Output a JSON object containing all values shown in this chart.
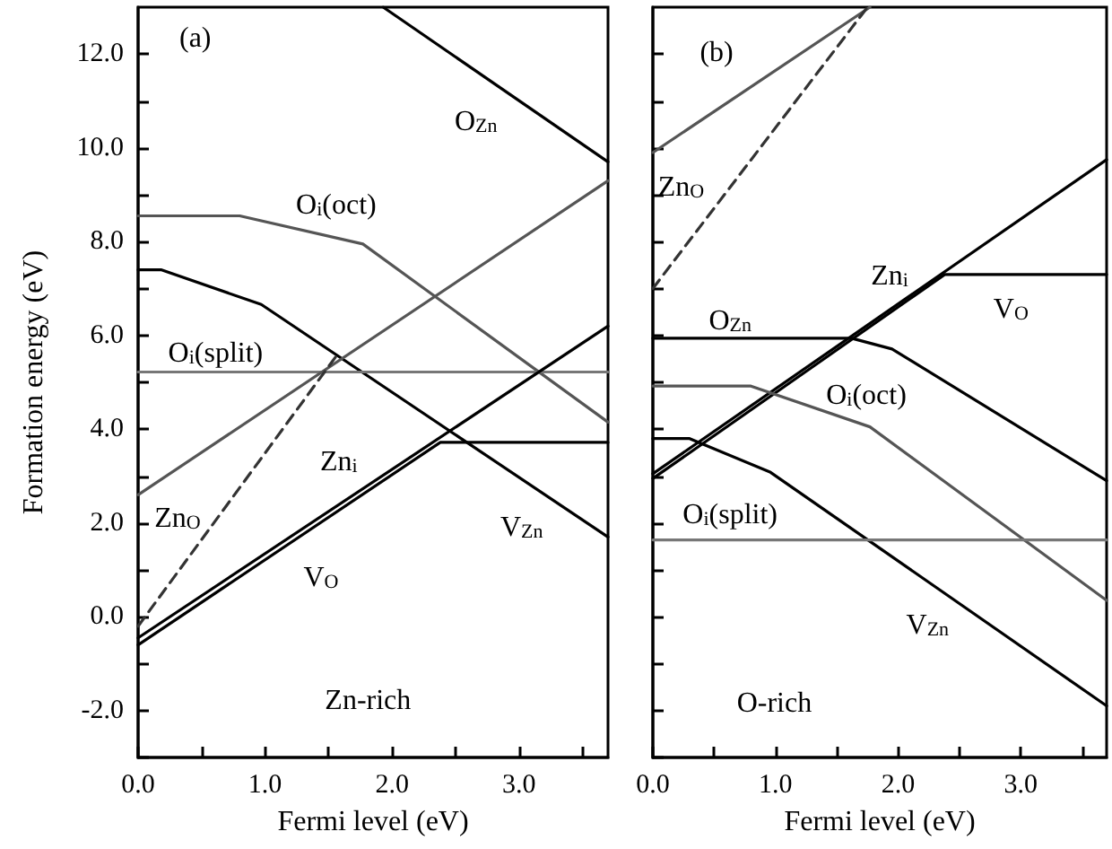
{
  "chart_data": [
    {
      "type": "line",
      "xlabel": "Fermi level (eV)",
      "ylabel": "Formation energy (eV)",
      "xlim": [
        0,
        3.7
      ],
      "ylim": [
        -3,
        13
      ],
      "xticks": [
        {
          "value": 0,
          "label": "0.0"
        },
        {
          "value": 0.5,
          "label": null
        },
        {
          "value": 1,
          "label": "1.0"
        },
        {
          "value": 1.5,
          "label": null
        },
        {
          "value": 2,
          "label": "2.0"
        },
        {
          "value": 2.5,
          "label": null
        },
        {
          "value": 3,
          "label": "3.0"
        },
        {
          "value": 3.5,
          "label": null
        }
      ],
      "yticks": [
        {
          "value": -3,
          "label": null
        },
        {
          "value": -2,
          "label": "-2.0"
        },
        {
          "value": -1,
          "label": null
        },
        {
          "value": 0,
          "label": "0.0"
        },
        {
          "value": 1,
          "label": null
        },
        {
          "value": 2,
          "label": "2.0"
        },
        {
          "value": 3,
          "label": null
        },
        {
          "value": 4,
          "label": "4.0"
        },
        {
          "value": 5,
          "label": null
        },
        {
          "value": 6,
          "label": "6.0"
        },
        {
          "value": 7,
          "label": null
        },
        {
          "value": 8,
          "label": "8.0"
        },
        {
          "value": 9,
          "label": null
        },
        {
          "value": 10,
          "label": "10.0"
        },
        {
          "value": 11,
          "label": null
        },
        {
          "value": 12,
          "label": "12.0"
        }
      ],
      "grid": false,
      "marker": "none",
      "series": [
        {
          "color": "#000000",
          "x": [
            1.93,
            3.7
          ],
          "values": [
            13.0,
            9.7
          ]
        },
        {
          "color": "#555555",
          "x": [
            0,
            0.8,
            1.77,
            3.7
          ],
          "values": [
            8.55,
            8.55,
            7.95,
            4.15
          ]
        },
        {
          "color": "#000000",
          "x": [
            0,
            0.18,
            0.97,
            3.7
          ],
          "values": [
            7.4,
            7.4,
            6.66,
            1.7
          ]
        },
        {
          "color": "#777777",
          "x": [
            0,
            3.7
          ],
          "values": [
            5.22,
            5.22
          ]
        },
        {
          "color": "#555555",
          "x": [
            0,
            3.7
          ],
          "values": [
            2.6,
            9.3
          ]
        },
        {
          "color": "#333333",
          "line_style": "dashed",
          "x": [
            0,
            1.56
          ],
          "values": [
            -0.2,
            5.56
          ]
        },
        {
          "color": "#000000",
          "x": [
            0,
            3.7
          ],
          "values": [
            -0.45,
            6.2
          ]
        },
        {
          "color": "#000000",
          "x": [
            0,
            2.38,
            3.7
          ],
          "values": [
            -0.6,
            3.72,
            3.72
          ]
        }
      ],
      "annotations": [
        "(a)",
        "O$_{Zn}$",
        "O$_{i}$(oct)",
        "O$_{i}$(split)",
        "Zn$_{i}$",
        "Zn$_{O}$",
        "V$_{O}$",
        "V$_{Zn}$",
        "Zn-rich"
      ]
    },
    {
      "type": "line",
      "xlabel": "Fermi level (eV)",
      "xlim": [
        0,
        3.7
      ],
      "ylim": [
        -3,
        13
      ],
      "tick_labels": "x",
      "xticks": [
        {
          "value": 0,
          "label": "0.0"
        },
        {
          "value": 0.5,
          "label": null
        },
        {
          "value": 1,
          "label": "1.0"
        },
        {
          "value": 1.5,
          "label": null
        },
        {
          "value": 2,
          "label": "2.0"
        },
        {
          "value": 2.5,
          "label": null
        },
        {
          "value": 3,
          "label": "3.0"
        },
        {
          "value": 3.5,
          "label": null
        }
      ],
      "yticks": [
        {
          "value": -3,
          "label": null
        },
        {
          "value": -2,
          "label": null
        },
        {
          "value": -1,
          "label": null
        },
        {
          "value": 0,
          "label": null
        },
        {
          "value": 1,
          "label": null
        },
        {
          "value": 2,
          "label": null
        },
        {
          "value": 3,
          "label": null
        },
        {
          "value": 4,
          "label": null
        },
        {
          "value": 5,
          "label": null
        },
        {
          "value": 6,
          "label": null
        },
        {
          "value": 7,
          "label": null
        },
        {
          "value": 8,
          "label": null
        },
        {
          "value": 9,
          "label": null
        },
        {
          "value": 10,
          "label": null
        },
        {
          "value": 11,
          "label": null
        },
        {
          "value": 12,
          "label": null
        }
      ],
      "grid": false,
      "marker": "none",
      "series": [
        {
          "color": "#555555",
          "x": [
            0,
            1.77
          ],
          "values": [
            9.9,
            13.0
          ]
        },
        {
          "color": "#333333",
          "line_style": "dashed",
          "x": [
            0,
            1.75
          ],
          "values": [
            7.0,
            13.0
          ]
        },
        {
          "color": "#000000",
          "x": [
            0,
            3.7
          ],
          "values": [
            3.05,
            9.75
          ]
        },
        {
          "color": "#000000",
          "x": [
            0,
            2.38,
            3.7
          ],
          "values": [
            2.95,
            7.3,
            7.3
          ]
        },
        {
          "color": "#000000",
          "x": [
            0,
            1.62,
            1.95,
            3.7
          ],
          "values": [
            5.94,
            5.94,
            5.71,
            2.9
          ]
        },
        {
          "color": "#555555",
          "x": [
            0,
            0.8,
            1.77,
            3.7
          ],
          "values": [
            4.92,
            4.92,
            4.05,
            0.35
          ]
        },
        {
          "color": "#000000",
          "x": [
            0,
            0.3,
            0.96,
            3.7
          ],
          "values": [
            3.8,
            3.8,
            3.08,
            -1.9
          ]
        },
        {
          "color": "#777777",
          "x": [
            0,
            3.7
          ],
          "values": [
            1.64,
            1.64
          ]
        }
      ],
      "annotations": [
        "(b)",
        "Zn$_{O}$",
        "Zn$_{i}$",
        "V$_{O}$",
        "O$_{Zn}$",
        "O$_{i}$(oct)",
        "O$_{i}$(split)",
        "V$_{Zn}$",
        "O-rich"
      ]
    }
  ]
}
